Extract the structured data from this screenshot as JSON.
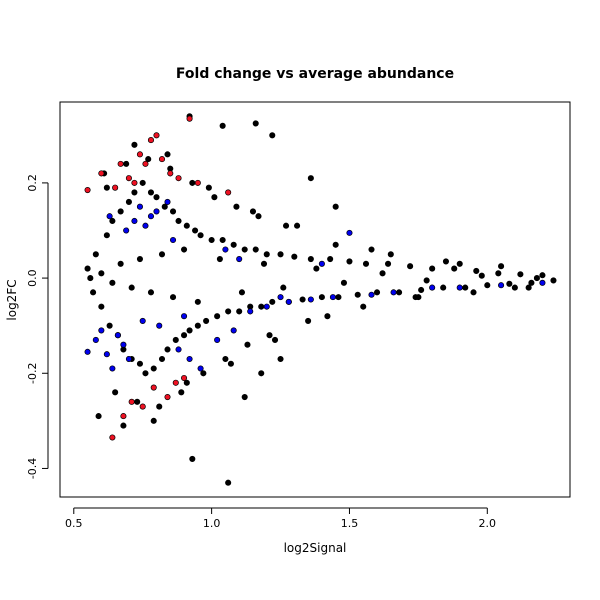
{
  "chart_data": {
    "type": "scatter",
    "title": "Fold change vs average abundance",
    "xlabel": "log2Signal",
    "ylabel": "log2FC",
    "xlim": [
      0.45,
      2.3
    ],
    "ylim": [
      -0.46,
      0.37
    ],
    "xticks": [
      0.5,
      1.0,
      1.5,
      2.0
    ],
    "xtick_labels": [
      "0.5",
      "1.0",
      "1.5",
      "2.0"
    ],
    "yticks": [
      -0.4,
      -0.2,
      0.0,
      0.2
    ],
    "ytick_labels": [
      "-0.4",
      "-0.2",
      "0.0",
      "0.2"
    ],
    "grid": false,
    "legend": "none",
    "colors": {
      "background": "#ffffff",
      "point_fill": "#000000",
      "highlight_blue": "#0000ee",
      "highlight_red": "#ee1122",
      "point_edge": "#000000"
    },
    "series": [
      {
        "color": "#000000",
        "x": [
          0.55,
          0.57,
          0.58,
          0.6,
          0.62,
          0.63,
          0.64,
          0.66,
          0.67,
          0.68,
          0.7,
          0.71,
          0.72,
          0.74,
          0.75,
          0.76,
          0.78,
          0.79,
          0.8,
          0.82,
          0.83,
          0.84,
          0.86,
          0.87,
          0.88,
          0.9,
          0.91,
          0.92,
          0.94,
          0.95,
          0.96,
          0.98,
          1.0,
          1.02,
          1.04,
          1.06,
          1.08,
          1.1,
          1.12,
          1.14,
          1.16,
          1.18,
          1.2,
          1.22,
          1.25,
          1.28,
          1.3,
          1.33,
          1.36,
          1.4,
          1.43,
          1.46,
          1.5,
          1.53,
          1.56,
          1.6,
          1.64,
          1.68,
          1.72,
          1.76,
          1.8,
          1.84,
          1.88,
          1.92,
          1.96,
          2.0,
          2.04,
          2.08,
          2.12,
          2.16,
          2.2,
          2.24,
          0.61,
          0.65,
          0.69,
          0.73,
          0.77,
          0.81,
          0.85,
          0.89,
          0.93,
          0.97,
          1.01,
          1.05,
          1.09,
          1.13,
          1.17,
          1.21,
          1.27,
          1.35,
          1.45,
          1.55,
          1.65,
          1.75,
          1.85,
          1.95,
          2.05,
          2.15,
          0.59,
          0.62,
          0.68,
          0.72,
          0.79,
          0.84,
          0.91,
          0.99,
          1.07,
          1.15,
          1.23,
          1.31,
          1.42,
          1.58,
          1.74,
          1.9,
          2.1,
          0.56,
          0.6,
          0.64,
          0.67,
          0.71,
          0.74,
          0.78,
          0.82,
          0.86,
          0.9,
          0.95,
          1.03,
          1.11,
          1.19,
          1.26,
          1.38,
          1.48,
          1.62,
          1.78,
          1.98,
          2.18,
          1.16,
          0.92,
          1.04,
          1.06,
          0.93,
          1.22,
          1.36,
          1.45,
          1.18,
          1.12,
          1.25
        ],
        "y": [
          0.02,
          -0.03,
          0.05,
          -0.06,
          0.09,
          -0.1,
          0.12,
          -0.12,
          0.14,
          -0.15,
          0.16,
          -0.17,
          0.18,
          -0.18,
          0.2,
          -0.2,
          0.18,
          -0.19,
          0.17,
          -0.17,
          0.15,
          -0.15,
          0.14,
          -0.13,
          0.12,
          -0.12,
          0.11,
          -0.11,
          0.1,
          -0.1,
          0.09,
          -0.09,
          0.08,
          -0.08,
          0.08,
          -0.07,
          0.07,
          -0.07,
          0.06,
          -0.06,
          0.06,
          -0.06,
          0.05,
          -0.05,
          0.05,
          -0.05,
          0.045,
          -0.045,
          0.04,
          -0.04,
          0.04,
          -0.04,
          0.035,
          -0.035,
          0.03,
          -0.03,
          0.03,
          -0.03,
          0.025,
          -0.025,
          0.02,
          -0.02,
          0.02,
          -0.02,
          0.015,
          -0.015,
          0.01,
          -0.012,
          0.008,
          -0.01,
          0.006,
          -0.005,
          0.22,
          -0.24,
          0.24,
          -0.26,
          0.25,
          -0.27,
          0.23,
          -0.24,
          0.2,
          -0.2,
          0.17,
          -0.17,
          0.15,
          -0.14,
          0.13,
          -0.12,
          0.11,
          -0.09,
          0.07,
          -0.06,
          0.05,
          -0.04,
          0.035,
          -0.03,
          0.025,
          -0.02,
          -0.29,
          0.19,
          -0.31,
          0.28,
          -0.3,
          0.26,
          -0.22,
          0.19,
          -0.18,
          0.14,
          -0.13,
          0.11,
          -0.08,
          0.06,
          -0.04,
          0.03,
          -0.02,
          0.0,
          0.01,
          -0.01,
          0.03,
          -0.02,
          0.04,
          -0.03,
          0.05,
          -0.04,
          0.06,
          -0.05,
          0.04,
          -0.03,
          0.03,
          -0.02,
          0.02,
          -0.01,
          0.01,
          -0.005,
          0.005,
          0.0,
          0.325,
          0.34,
          0.32,
          -0.43,
          -0.38,
          0.3,
          0.21,
          0.15,
          -0.2,
          -0.25,
          -0.17
        ]
      },
      {
        "color": "#0000ee",
        "x": [
          0.55,
          0.58,
          0.6,
          0.62,
          0.64,
          0.66,
          0.68,
          0.7,
          0.72,
          0.74,
          0.76,
          0.78,
          0.8,
          0.84,
          0.88,
          0.92,
          0.96,
          1.02,
          1.08,
          1.14,
          1.2,
          1.28,
          1.36,
          1.44,
          1.5,
          1.58,
          1.66,
          1.8,
          1.9,
          2.05,
          2.2,
          0.63,
          0.69,
          0.75,
          0.81,
          0.86,
          0.9,
          1.05,
          1.1,
          1.25,
          1.4
        ],
        "y": [
          -0.155,
          -0.13,
          -0.11,
          -0.16,
          -0.19,
          -0.12,
          -0.14,
          -0.17,
          0.12,
          0.15,
          0.11,
          0.13,
          0.14,
          0.16,
          -0.15,
          -0.17,
          -0.19,
          -0.13,
          -0.11,
          -0.07,
          -0.06,
          -0.05,
          -0.045,
          -0.04,
          0.095,
          -0.035,
          -0.03,
          -0.02,
          -0.02,
          -0.015,
          -0.01,
          0.13,
          0.1,
          -0.09,
          -0.1,
          0.08,
          -0.08,
          0.06,
          0.04,
          -0.04,
          0.03
        ]
      },
      {
        "color": "#ee1122",
        "x": [
          0.55,
          0.6,
          0.65,
          0.67,
          0.7,
          0.72,
          0.74,
          0.76,
          0.78,
          0.8,
          0.82,
          0.85,
          0.88,
          0.92,
          0.95,
          1.06,
          0.64,
          0.68,
          0.71,
          0.75,
          0.79,
          0.84,
          0.87,
          0.9
        ],
        "y": [
          0.185,
          0.22,
          0.19,
          0.24,
          0.21,
          0.2,
          0.26,
          0.24,
          0.29,
          0.3,
          0.25,
          0.22,
          0.21,
          0.335,
          0.2,
          0.18,
          -0.335,
          -0.29,
          -0.26,
          -0.27,
          -0.23,
          -0.25,
          -0.22,
          -0.21
        ]
      }
    ]
  }
}
